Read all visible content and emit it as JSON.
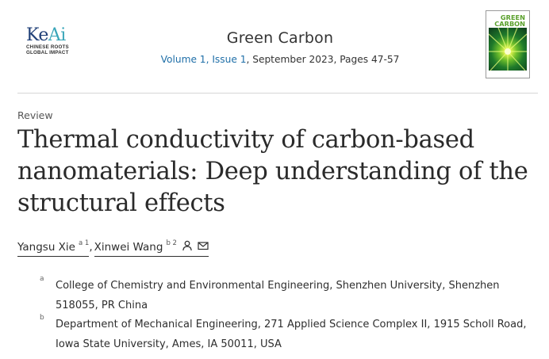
{
  "publisher": {
    "logo_main": "KeAi",
    "tagline_1": "CHINESE ROOTS",
    "tagline_2": "GLOBAL IMPACT"
  },
  "journal": {
    "title": "Green Carbon",
    "issue_link": "Volume 1, Issue 1",
    "issue_rest": ", September 2023, Pages 47-57",
    "cover_line1": "GREEN",
    "cover_line2": "CARBON"
  },
  "article": {
    "type": "Review",
    "title": "Thermal conductivity of carbon-based nanomaterials: Deep understanding of the structural effects"
  },
  "authors": [
    {
      "name": "Yangsu Xie",
      "sup": "a 1"
    },
    {
      "name": "Xinwei Wang",
      "sup": "b 2"
    }
  ],
  "author_separator": ",",
  "affiliations": [
    {
      "label": "a",
      "lines": [
        "College of Chemistry and Environmental Engineering, Shenzhen University, Shenzhen",
        "518055, PR China"
      ]
    },
    {
      "label": "b",
      "lines": [
        "Department of Mechanical Engineering, 271 Applied Science Complex II, 1915 Scholl Road,",
        "Iowa State University, Ames, IA 50011, USA"
      ]
    }
  ],
  "colors": {
    "link": "#1f6fa8",
    "logo_blue": "#1f3f77",
    "logo_teal": "#3aa6b9",
    "cover_green": "#5aa02c"
  },
  "icons": [
    "person-icon",
    "envelope-icon"
  ]
}
